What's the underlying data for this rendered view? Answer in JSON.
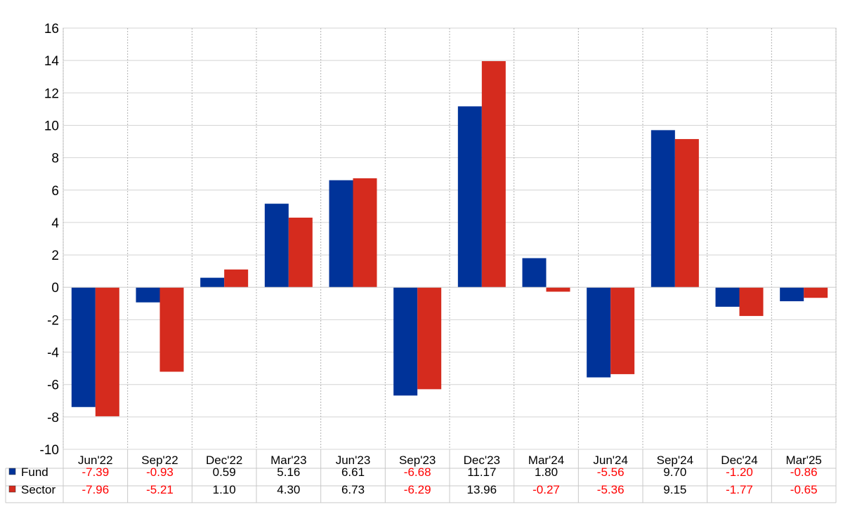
{
  "chart_data": {
    "type": "bar",
    "categories": [
      "Jun'22",
      "Sep'22",
      "Dec'22",
      "Mar'23",
      "Jun'23",
      "Sep'23",
      "Dec'23",
      "Mar'24",
      "Jun'24",
      "Sep'24",
      "Dec'24",
      "Mar'25"
    ],
    "series": [
      {
        "name": "Fund",
        "color": "#003399",
        "values": [
          -7.39,
          -0.93,
          0.59,
          5.16,
          6.61,
          -6.68,
          11.17,
          1.8,
          -5.56,
          9.7,
          -1.2,
          -0.86
        ],
        "labels": [
          "-7.39",
          "-0.93",
          "0.59",
          "5.16",
          "6.61",
          "-6.68",
          "11.17",
          "1.80",
          "-5.56",
          "9.70",
          "-1.20",
          "-0.86"
        ]
      },
      {
        "name": "Sector",
        "color": "#d52b1e",
        "values": [
          -7.96,
          -5.21,
          1.1,
          4.3,
          6.73,
          -6.29,
          13.96,
          -0.27,
          -5.36,
          9.15,
          -1.77,
          -0.65
        ],
        "labels": [
          "-7.96",
          "-5.21",
          "1.10",
          "4.30",
          "6.73",
          "-6.29",
          "13.96",
          "-0.27",
          "-5.36",
          "9.15",
          "-1.77",
          "-0.65"
        ]
      }
    ],
    "ylim": [
      -10,
      16
    ],
    "yticks": [
      "-10",
      "-8",
      "-6",
      "-4",
      "-2",
      "0",
      "2",
      "4",
      "6",
      "8",
      "10",
      "12",
      "14",
      "16"
    ],
    "grid": true,
    "legend": "table-below",
    "negative_value_color": "#ff0000",
    "positive_value_color": "#000000"
  }
}
